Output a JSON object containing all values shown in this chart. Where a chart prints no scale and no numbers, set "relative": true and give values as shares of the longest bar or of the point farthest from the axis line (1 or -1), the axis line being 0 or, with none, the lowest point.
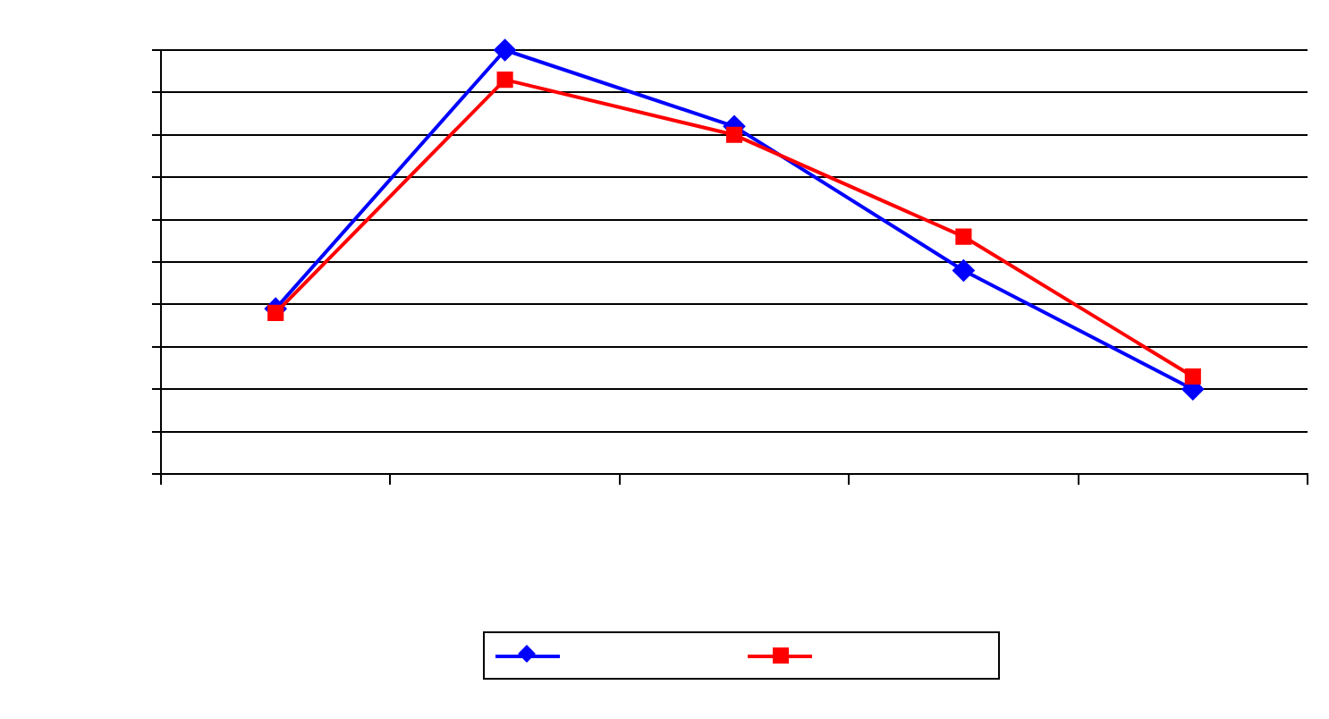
{
  "chart_data": {
    "type": "line",
    "relative": true,
    "categories": [
      null,
      null,
      null,
      null,
      null
    ],
    "series": [
      {
        "color": "#0000ff",
        "marker": "diamond",
        "values": [
          0.39,
          1,
          0.82,
          0.48,
          0.2
        ]
      },
      {
        "color": "#ff0000",
        "marker": "square",
        "values": [
          0.38,
          0.93,
          0.8,
          0.56,
          0.23
        ]
      }
    ],
    "grid": "y"
  }
}
